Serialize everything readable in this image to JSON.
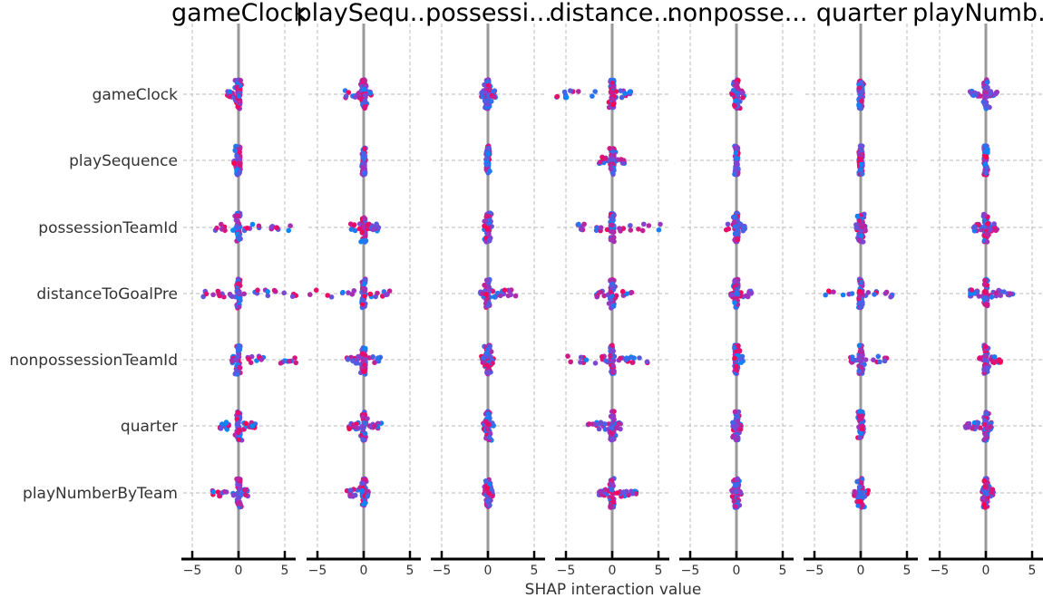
{
  "chart_data": {
    "type": "scatter",
    "subtype": "shap-interaction-summary",
    "xlabel": "SHAP interaction value",
    "features": [
      "gameClock",
      "playSequence",
      "possessionTeamId",
      "distanceToGoalPre",
      "nonpossessionTeamId",
      "quarter",
      "playNumberByTeam"
    ],
    "panel_titles": [
      "gameClock",
      "playSequ...",
      "possessi...",
      "distance...",
      "nonposse...",
      "quarter",
      "playNumb..."
    ],
    "xlim": [
      -6,
      6.2
    ],
    "xticks": [
      -5,
      0,
      5
    ],
    "tick_labels": [
      "−5",
      "0",
      "5"
    ],
    "grid": true,
    "colors": {
      "low": "#008afb",
      "mid": "#8a3ed0",
      "high": "#ff0052",
      "zero_line": "#999999",
      "grid": "#bbbbbb",
      "axis": "#000000"
    },
    "cells": [
      [
        [
          -1.2,
          0.3
        ],
        [
          -0.5,
          0.2
        ],
        [
          -2.5,
          5.6
        ],
        [
          -3.8,
          6.2
        ],
        [
          -0.7,
          6.2
        ],
        [
          -2.0,
          1.8
        ],
        [
          -2.8,
          1.0
        ]
      ],
      [
        [
          -2.0,
          0.8
        ],
        [
          -0.1,
          0.1
        ],
        [
          -1.4,
          1.6
        ],
        [
          -5.8,
          2.8
        ],
        [
          -1.8,
          1.8
        ],
        [
          -1.6,
          1.9
        ],
        [
          -1.8,
          0.5
        ]
      ],
      [
        [
          -0.7,
          0.8
        ],
        [
          -0.1,
          0.1
        ],
        [
          -0.4,
          0.4
        ],
        [
          -0.8,
          3.0
        ],
        [
          -0.7,
          0.6
        ],
        [
          -0.5,
          0.6
        ],
        [
          -0.4,
          0.5
        ]
      ],
      [
        [
          -6.0,
          2.0
        ],
        [
          -1.4,
          1.3
        ],
        [
          -3.7,
          5.2
        ],
        [
          -1.7,
          2.1
        ],
        [
          -4.8,
          3.8
        ],
        [
          -2.6,
          0.9
        ],
        [
          -1.4,
          2.6
        ]
      ],
      [
        [
          -0.5,
          0.8
        ],
        [
          -0.1,
          0.1
        ],
        [
          -1.1,
          0.9
        ],
        [
          -0.6,
          1.6
        ],
        [
          -0.2,
          0.7
        ],
        [
          -0.4,
          0.5
        ],
        [
          -0.5,
          0.5
        ]
      ],
      [
        [
          -0.2,
          0.3
        ],
        [
          -0.1,
          0.1
        ],
        [
          -0.5,
          0.5
        ],
        [
          -3.8,
          3.4
        ],
        [
          -1.1,
          2.8
        ],
        [
          -0.3,
          0.3
        ],
        [
          -0.7,
          0.8
        ]
      ],
      [
        [
          -1.7,
          1.2
        ],
        [
          -0.1,
          0.1
        ],
        [
          -1.3,
          1.2
        ],
        [
          -1.7,
          2.9
        ],
        [
          -0.7,
          1.6
        ],
        [
          -2.2,
          0.6
        ],
        [
          -0.4,
          0.8
        ]
      ]
    ]
  }
}
